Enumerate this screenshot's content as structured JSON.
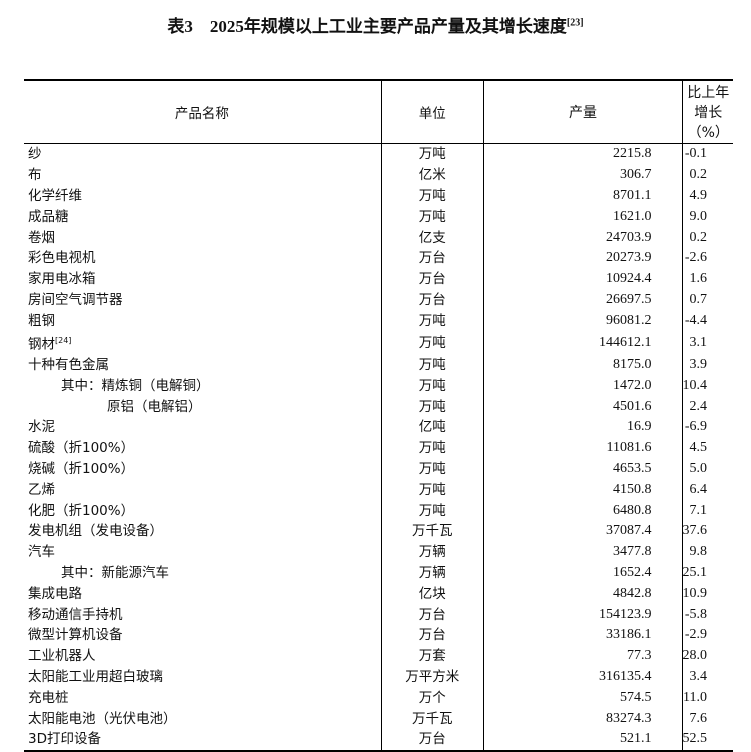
{
  "title": {
    "text": "表3　2025年规模以上工业主要产品产量及其增长速度",
    "note": "[23]"
  },
  "headers": [
    "产品名称",
    "单位",
    "产量",
    "比上年增长（%）"
  ],
  "rows": [
    {
      "name": "纱",
      "unit": "万吨",
      "output": "2215.8",
      "growth": "-0.1",
      "indent": 0
    },
    {
      "name": "布",
      "unit": "亿米",
      "output": "306.7",
      "growth": "0.2",
      "indent": 0
    },
    {
      "name": "化学纤维",
      "unit": "万吨",
      "output": "8701.1",
      "growth": "4.9",
      "indent": 0
    },
    {
      "name": "成品糖",
      "unit": "万吨",
      "output": "1621.0",
      "growth": "9.0",
      "indent": 0
    },
    {
      "name": "卷烟",
      "unit": "亿支",
      "output": "24703.9",
      "growth": "0.2",
      "indent": 0
    },
    {
      "name": "彩色电视机",
      "unit": "万台",
      "output": "20273.9",
      "growth": "-2.6",
      "indent": 0
    },
    {
      "name": "家用电冰箱",
      "unit": "万台",
      "output": "10924.4",
      "growth": "1.6",
      "indent": 0
    },
    {
      "name": "房间空气调节器",
      "unit": "万台",
      "output": "26697.5",
      "growth": "0.7",
      "indent": 0
    },
    {
      "name": "粗钢",
      "unit": "万吨",
      "output": "96081.2",
      "growth": "-4.4",
      "indent": 0
    },
    {
      "name": "钢材",
      "note": "[24]",
      "unit": "万吨",
      "output": "144612.1",
      "growth": "3.1",
      "indent": 0
    },
    {
      "name": "十种有色金属",
      "unit": "万吨",
      "output": "8175.0",
      "growth": "3.9",
      "indent": 0
    },
    {
      "name": "其中：精炼铜（电解铜）",
      "unit": "万吨",
      "output": "1472.0",
      "growth": "10.4",
      "indent": 1
    },
    {
      "name": "原铝（电解铝）",
      "unit": "万吨",
      "output": "4501.6",
      "growth": "2.4",
      "indent": 2
    },
    {
      "name": "水泥",
      "unit": "亿吨",
      "output": "16.9",
      "growth": "-6.9",
      "indent": 0
    },
    {
      "name": "硫酸（折100%）",
      "unit": "万吨",
      "output": "11081.6",
      "growth": "4.5",
      "indent": 0
    },
    {
      "name": "烧碱（折100%）",
      "unit": "万吨",
      "output": "4653.5",
      "growth": "5.0",
      "indent": 0
    },
    {
      "name": "乙烯",
      "unit": "万吨",
      "output": "4150.8",
      "growth": "6.4",
      "indent": 0
    },
    {
      "name": "化肥（折100%）",
      "unit": "万吨",
      "output": "6480.8",
      "growth": "7.1",
      "indent": 0
    },
    {
      "name": "发电机组（发电设备）",
      "unit": "万千瓦",
      "output": "37087.4",
      "growth": "37.6",
      "indent": 0
    },
    {
      "name": "汽车",
      "unit": "万辆",
      "output": "3477.8",
      "growth": "9.8",
      "indent": 0
    },
    {
      "name": "其中：新能源汽车",
      "unit": "万辆",
      "output": "1652.4",
      "growth": "25.1",
      "indent": 1
    },
    {
      "name": "集成电路",
      "unit": "亿块",
      "output": "4842.8",
      "growth": "10.9",
      "indent": 0
    },
    {
      "name": "移动通信手持机",
      "unit": "万台",
      "output": "154123.9",
      "growth": "-5.8",
      "indent": 0
    },
    {
      "name": "微型计算机设备",
      "unit": "万台",
      "output": "33186.1",
      "growth": "-2.9",
      "indent": 0
    },
    {
      "name": "工业机器人",
      "unit": "万套",
      "output": "77.3",
      "growth": "28.0",
      "indent": 0
    },
    {
      "name": "太阳能工业用超白玻璃",
      "unit": "万平方米",
      "output": "316135.4",
      "growth": "3.4",
      "indent": 0
    },
    {
      "name": "充电桩",
      "unit": "万个",
      "output": "574.5",
      "growth": "11.0",
      "indent": 0
    },
    {
      "name": "太阳能电池（光伏电池）",
      "unit": "万千瓦",
      "output": "83274.3",
      "growth": "7.6",
      "indent": 0
    },
    {
      "name": "3D打印设备",
      "unit": "万台",
      "output": "521.1",
      "growth": "52.5",
      "indent": 0
    }
  ]
}
